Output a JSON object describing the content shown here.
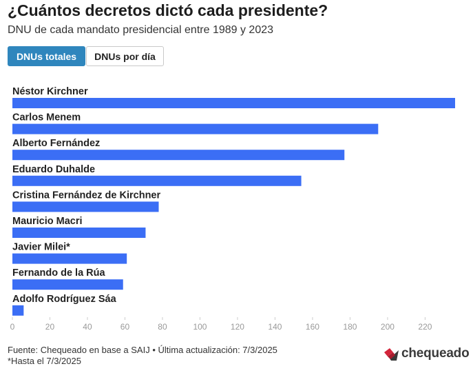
{
  "header": {
    "title": "¿Cuántos decretos dictó cada presidente?",
    "subtitle": "DNU de cada mandato presidencial entre 1989 y 2023"
  },
  "tabs": [
    {
      "label": "DNUs totales",
      "active": true
    },
    {
      "label": "DNUs por día",
      "active": false
    }
  ],
  "chart_data": {
    "type": "bar",
    "orientation": "horizontal",
    "categories": [
      "Néstor Kirchner",
      "Carlos Menem",
      "Alberto Fernández",
      "Eduardo Duhalde",
      "Cristina Fernández de Kirchner",
      "Mauricio Macri",
      "Javier Milei*",
      "Fernando de la Rúa",
      "Adolfo Rodríguez Sáa"
    ],
    "values": [
      236,
      195,
      177,
      154,
      78,
      71,
      61,
      59,
      6
    ],
    "xlim": [
      0,
      236
    ],
    "xticks": [
      0,
      20,
      40,
      60,
      80,
      100,
      120,
      140,
      160,
      180,
      200,
      220
    ],
    "bar_color": "#3b6ef5",
    "grid": false,
    "legend": "none"
  },
  "footer": {
    "source": "Fuente: Chequeado en base a SAIJ • Última actualización: 7/3/2025",
    "note": "*Hasta el 7/3/2025"
  },
  "logo": {
    "text": "chequeado",
    "colors": [
      "#d3243a",
      "#3a3a3a"
    ]
  }
}
